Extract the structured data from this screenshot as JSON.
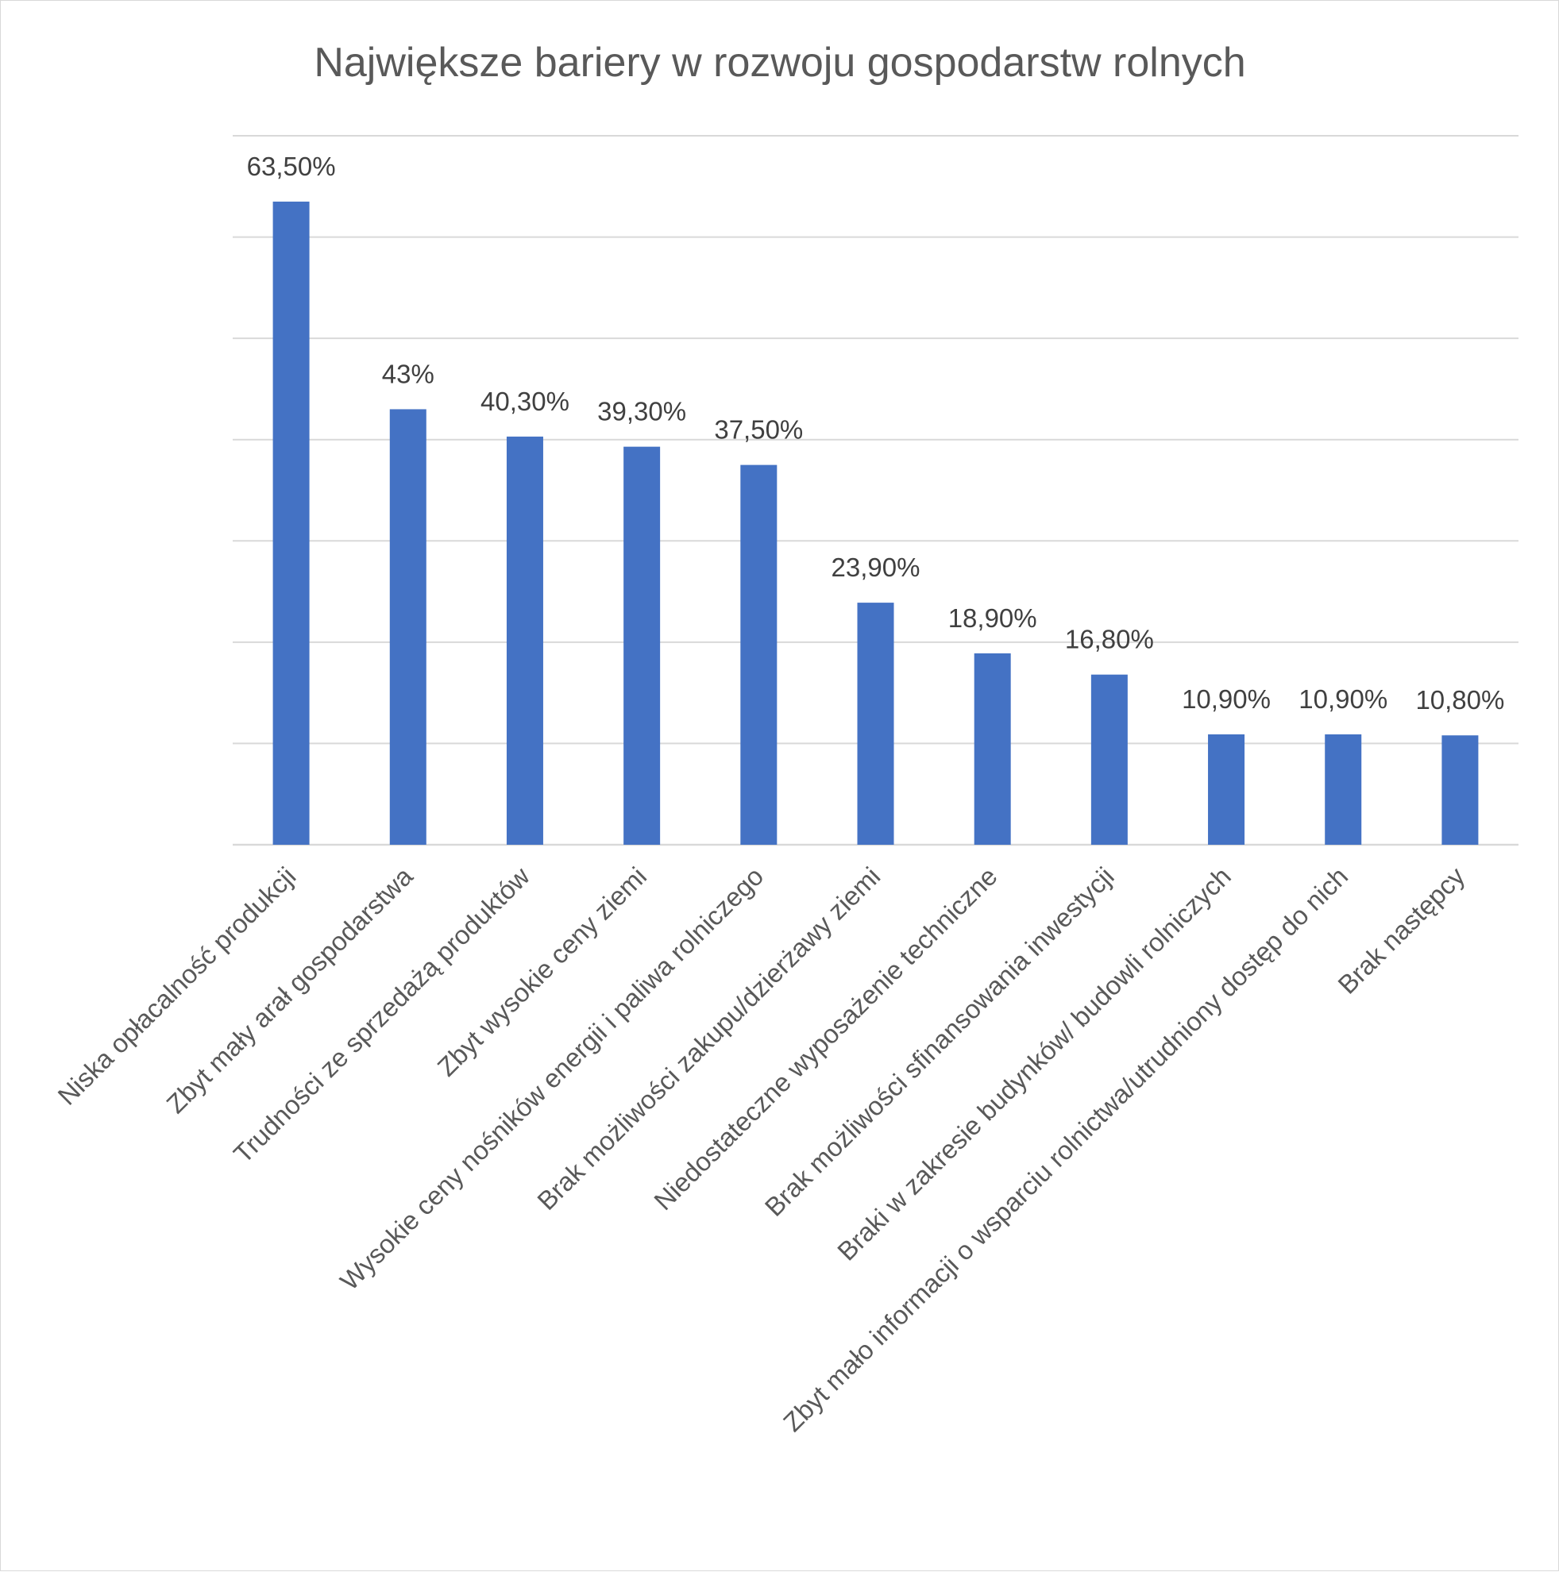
{
  "chart_data": {
    "type": "bar",
    "title": "Największe bariery w rozwoju gospodarstw rolnych",
    "xlabel": "",
    "ylabel": "",
    "categories": [
      "Niska opłacalność produkcji",
      "Zbyt mały arał gospodarstwa",
      "Trudności ze sprzedażą produktów",
      "Zbyt wysokie ceny ziemi",
      "Wysokie ceny nośników energii i paliwa rolniczego",
      "Brak możliwości zakupu/dzierżawy ziemi",
      "Niedostateczne wyposażenie techniczne",
      "Brak możliwości sfinansowania inwestycji",
      "Braki w zakresie budynków/ budowli rolniczych",
      "Zbyt mało informacji o wsparciu rolnictwa/utrudniony dostęp do nich",
      "Brak następcy"
    ],
    "values": [
      63.5,
      43,
      40.3,
      39.3,
      37.5,
      23.9,
      18.9,
      16.8,
      10.9,
      10.9,
      10.8
    ],
    "data_labels": [
      "63,50%",
      "43%",
      "40,30%",
      "39,30%",
      "37,50%",
      "23,90%",
      "18,90%",
      "16,80%",
      "10,90%",
      "10,90%",
      "10,80%"
    ],
    "ylim": [
      0,
      70
    ],
    "y_tick_step": 10,
    "y_tick_labels_visible": false,
    "grid": true,
    "legend": "none",
    "colors": {
      "bar": "#4472C4",
      "grid": "#d9d9d9",
      "title": "#595959",
      "data_label": "#404040",
      "axis_label": "#595959"
    }
  }
}
